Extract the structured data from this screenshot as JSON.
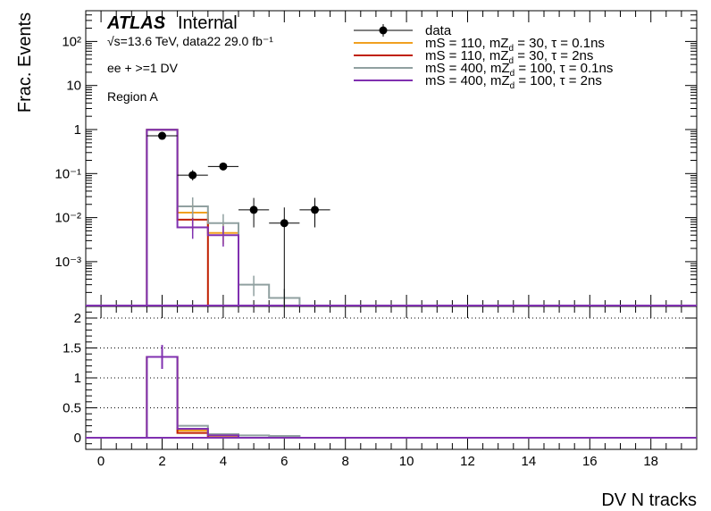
{
  "chart_data": {
    "type": "histogram",
    "ylabel": "Frac. Events",
    "xlabel": "DV N tracks",
    "annotations": {
      "experiment": "ATLAS",
      "status": "Internal",
      "energy_lumi": "√s=13.6 TeV, data22 29.0 fb⁻¹",
      "selection": "ee + >=1 DV",
      "region": "Region A"
    },
    "top_panel": {
      "yscale": "log",
      "ylim": [
        0.0001,
        500
      ],
      "yticks": [
        "10⁻³",
        "10⁻²",
        "10⁻¹",
        "1",
        "10",
        "10²"
      ],
      "ytick_values": [
        0.001,
        0.01,
        0.1,
        1,
        10,
        100
      ]
    },
    "bottom_panel": {
      "ylim": [
        -0.25,
        2.2
      ],
      "yticks": [
        "0",
        "0.5",
        "1",
        "1.5",
        "2"
      ],
      "ytick_values": [
        0,
        0.5,
        1,
        1.5,
        2
      ],
      "grid": true
    },
    "xlim": [
      -0.5,
      19.5
    ],
    "xticks": [
      "0",
      "2",
      "4",
      "6",
      "8",
      "10",
      "12",
      "14",
      "16",
      "18"
    ],
    "xtick_values": [
      0,
      2,
      4,
      6,
      8,
      10,
      12,
      14,
      16,
      18
    ],
    "data": {
      "name": "data",
      "color": "#000000",
      "points": [
        {
          "x": 2,
          "y": 0.72,
          "ylo": 0.6,
          "yhi": 0.86
        },
        {
          "x": 3,
          "y": 0.092,
          "ylo": 0.07,
          "yhi": 0.12
        },
        {
          "x": 4,
          "y": 0.145,
          "ylo": 0.12,
          "yhi": 0.17
        },
        {
          "x": 5,
          "y": 0.015,
          "ylo": 0.006,
          "yhi": 0.028
        },
        {
          "x": 6,
          "y": 0.0075,
          "ylo": 5e-05,
          "yhi": 0.017
        },
        {
          "x": 7,
          "y": 0.015,
          "ylo": 0.006,
          "yhi": 0.028
        }
      ]
    },
    "series": [
      {
        "name": "mS = 110, mZ_d = 30, τ = 0.1ns",
        "label_main": "mS = 110, mZ",
        "label_sub": "d",
        "label_rest": " = 30, τ = 0.1ns",
        "color": "#f0a020",
        "edges": [
          1.5,
          2.5,
          3.5,
          4.5
        ],
        "values": [
          0.99,
          0.013,
          0.0045
        ],
        "ratio": [
          1.35,
          0.12,
          0.02
        ]
      },
      {
        "name": "mS = 110, mZ_d = 30, τ = 2ns",
        "label_main": "mS = 110, mZ",
        "label_sub": "d",
        "label_rest": " = 30, τ = 2ns",
        "color": "#c02000",
        "edges": [
          1.5,
          2.5,
          3.5
        ],
        "values": [
          0.99,
          0.009
        ],
        "ratio": [
          1.35,
          0.08
        ]
      },
      {
        "name": "mS = 400, mZ_d = 100, τ = 0.1ns",
        "label_main": "mS = 400, mZ",
        "label_sub": "d",
        "label_rest": " = 100, τ = 0.1ns",
        "color": "#90a0a0",
        "edges": [
          1.5,
          2.5,
          3.5,
          4.5,
          5.5,
          6.5
        ],
        "values": [
          0.99,
          0.018,
          0.0075,
          0.0003,
          0.00015
        ],
        "ratio": [
          1.35,
          0.2,
          0.06,
          0.04,
          0.03
        ]
      },
      {
        "name": "mS = 400, mZ_d = 100, τ = 2ns",
        "label_main": "mS = 400, mZ",
        "label_sub": "d",
        "label_rest": " = 100, τ = 2ns",
        "color": "#8030b0",
        "edges": [
          1.5,
          2.5,
          3.5,
          4.5
        ],
        "values": [
          0.99,
          0.006,
          0.004
        ],
        "ratio": [
          1.35,
          0.15,
          0.04
        ]
      }
    ]
  }
}
